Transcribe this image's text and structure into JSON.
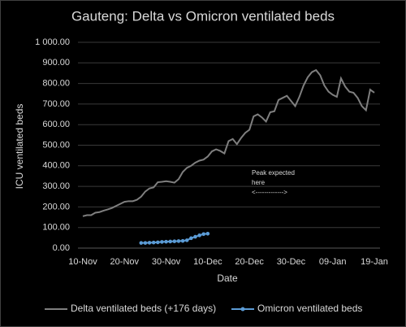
{
  "chart_data": {
    "type": "line",
    "title": "Gauteng: Delta vs Omicron ventilated beds",
    "x_label": "Date",
    "y_label": "ICU ventilated beds",
    "annotations": [
      "Peak expected",
      "here",
      "<------------->"
    ],
    "categories": [
      "10-Nov",
      null,
      null,
      null,
      null,
      null,
      null,
      null,
      null,
      null,
      "20-Nov",
      null,
      null,
      null,
      null,
      null,
      null,
      null,
      null,
      null,
      "30-Nov",
      null,
      null,
      null,
      null,
      null,
      null,
      null,
      null,
      null,
      "10-Dec",
      null,
      null,
      null,
      null,
      null,
      null,
      null,
      null,
      null,
      "20-Dec",
      null,
      null,
      null,
      null,
      null,
      null,
      null,
      null,
      null,
      "30-Dec",
      null,
      null,
      null,
      null,
      null,
      null,
      null,
      null,
      null,
      "09-Jan",
      null,
      null,
      null,
      null,
      null,
      null,
      null,
      null,
      null,
      "19-Jan"
    ],
    "series": [
      {
        "name": "Delta ventilated beds (+176 days)",
        "color": "#7f7f7f",
        "values": [
          155,
          160,
          160,
          172,
          175,
          182,
          188,
          195,
          205,
          215,
          225,
          228,
          228,
          235,
          250,
          275,
          290,
          295,
          320,
          322,
          325,
          322,
          318,
          335,
          370,
          390,
          400,
          415,
          425,
          430,
          445,
          470,
          480,
          472,
          460,
          520,
          530,
          505,
          535,
          560,
          575,
          640,
          650,
          635,
          615,
          660,
          665,
          720,
          730,
          740,
          715,
          690,
          735,
          790,
          830,
          855,
          865,
          840,
          790,
          760,
          745,
          735,
          825,
          785,
          760,
          755,
          730,
          690,
          670,
          770,
          755
        ]
      },
      {
        "name": "Omicron ventilated beds",
        "color": "#5b9bd5",
        "values": [
          null,
          null,
          null,
          null,
          null,
          null,
          null,
          null,
          null,
          null,
          null,
          null,
          null,
          null,
          25,
          25,
          26,
          27,
          28,
          30,
          31,
          32,
          33,
          34,
          35,
          38,
          48,
          55,
          62,
          68,
          70,
          null,
          null,
          null,
          null,
          null,
          null,
          null,
          null,
          null,
          null,
          null,
          null,
          null,
          null,
          null,
          null,
          null,
          null,
          null,
          null,
          null,
          null,
          null,
          null,
          null,
          null,
          null,
          null,
          null,
          null,
          null,
          null,
          null,
          null,
          null,
          null,
          null,
          null,
          null,
          null
        ]
      }
    ],
    "ylim": [
      0,
      1000
    ],
    "yticks": [
      {
        "value": 0,
        "label": "0.00"
      },
      {
        "value": 100,
        "label": "100.00"
      },
      {
        "value": 200,
        "label": "200.00"
      },
      {
        "value": 300,
        "label": "300.00"
      },
      {
        "value": 400,
        "label": "400.00"
      },
      {
        "value": 500,
        "label": "500.00"
      },
      {
        "value": 600,
        "label": "600.00"
      },
      {
        "value": 700,
        "label": "700.00"
      },
      {
        "value": 800,
        "label": "800.00"
      },
      {
        "value": 900,
        "label": "900.00"
      },
      {
        "value": 1000,
        "label": "1 000.00"
      }
    ],
    "grid": true,
    "legend": "bottom"
  }
}
